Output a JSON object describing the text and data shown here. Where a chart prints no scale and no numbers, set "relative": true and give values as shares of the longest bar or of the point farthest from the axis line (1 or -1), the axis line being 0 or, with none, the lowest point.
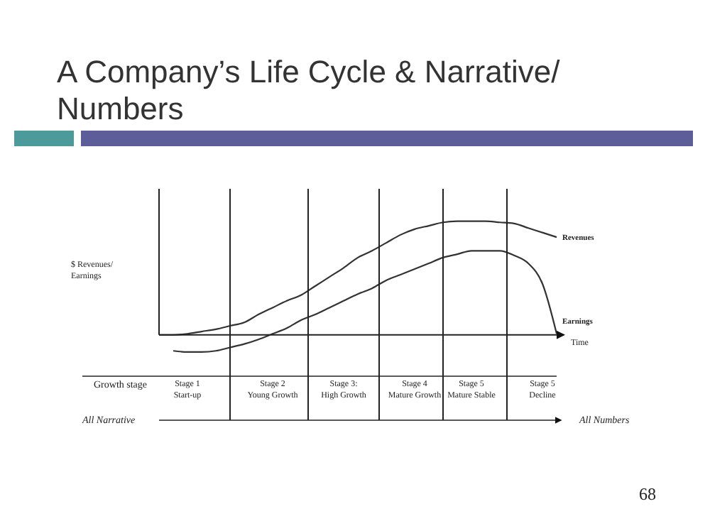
{
  "chart_data": {
    "type": "line",
    "title": "A Company’s Life Cycle & Narrative/ Numbers",
    "xlabel": "Time",
    "relative": true,
    "marker": "none",
    "line_style": "solid",
    "categories": [
      null,
      null,
      "Stage 1\nStart-up",
      null,
      null,
      null,
      null,
      null,
      "Stage 2\nYoung Growth",
      null,
      null,
      null,
      null,
      "Stage 3:\nHigh Growth",
      null,
      null,
      null,
      null,
      "Stage 4\nMature Growth",
      null,
      null,
      null,
      "Stage 5\nMature Stable",
      null,
      null,
      null,
      null,
      "Stage 5\nDecline",
      null
    ],
    "series": [
      {
        "name": "Revenues",
        "color": "#333333",
        "values": [
          0,
          0,
          0.01,
          0.03,
          0.05,
          0.08,
          0.11,
          0.18,
          0.24,
          0.3,
          0.35,
          0.43,
          0.51,
          0.59,
          0.68,
          0.74,
          0.81,
          0.88,
          0.93,
          0.96,
          0.99,
          1,
          1,
          1,
          0.99,
          0.98,
          0.94,
          0.9,
          0.86
        ]
      },
      {
        "name": "Earnings",
        "color": "#333333",
        "values": [
          null,
          -0.14,
          -0.15,
          -0.15,
          -0.14,
          -0.11,
          -0.08,
          -0.04,
          0.01,
          0.06,
          0.13,
          0.18,
          0.24,
          0.3,
          0.36,
          0.41,
          0.48,
          0.53,
          0.58,
          0.63,
          0.68,
          0.71,
          0.74,
          0.74,
          0.74,
          0.7,
          0.63,
          0.45,
          0.01
        ]
      }
    ],
    "grid": "x",
    "annotations": [
      "Growth stage",
      "All Narrative",
      "All Numbers",
      "68",
      "$ Revenues/ Earnings"
    ]
  }
}
